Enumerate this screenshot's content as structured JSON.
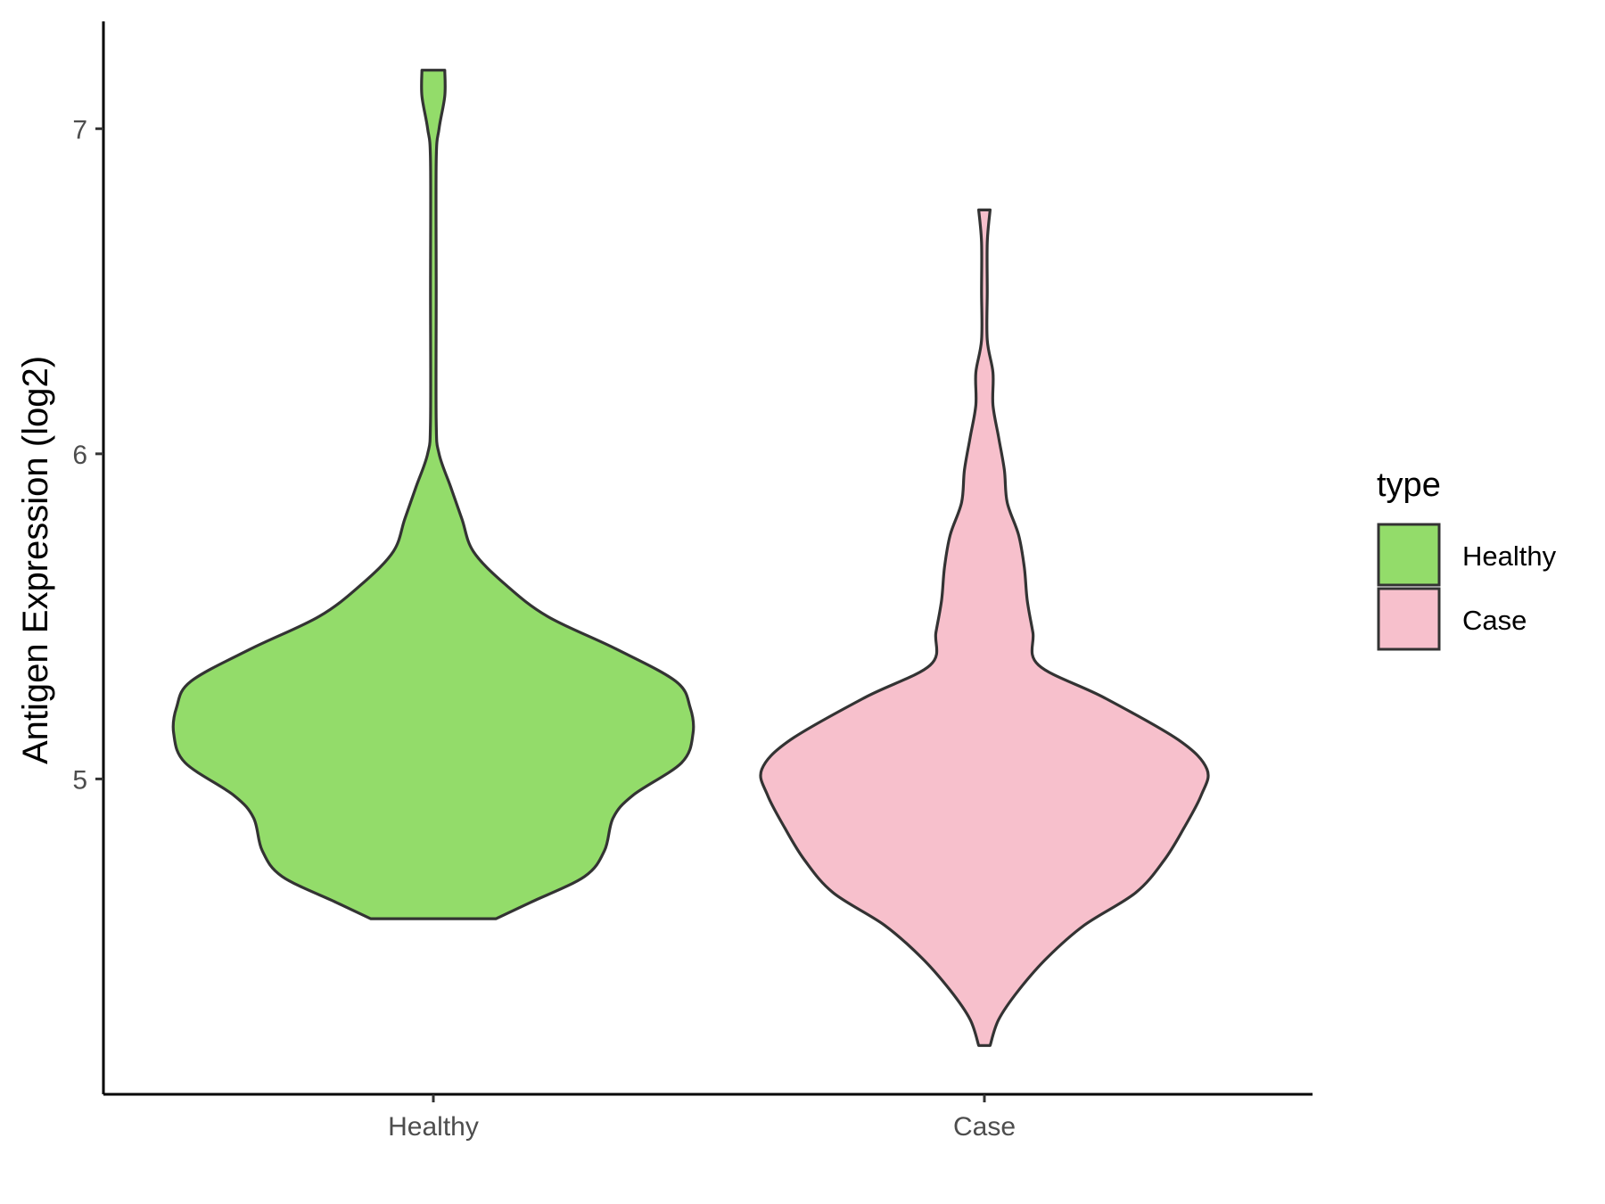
{
  "chart_data": {
    "type": "violin",
    "title": "",
    "xlabel": "",
    "ylabel": "Antigen Expression (log2)",
    "ylim": [
      4.03,
      7.33
    ],
    "yticks": [
      5,
      6,
      7
    ],
    "categories": [
      "Healthy",
      "Case"
    ],
    "legend": {
      "title": "type",
      "placement": "right",
      "entries": [
        "Healthy",
        "Case"
      ]
    },
    "grid": false,
    "series": [
      {
        "name": "Healthy",
        "color": "#93DC6A",
        "min": 4.57,
        "max": 7.18,
        "density_profile": [
          [
            4.57,
            0.22
          ],
          [
            4.62,
            0.34
          ],
          [
            4.7,
            0.53
          ],
          [
            4.78,
            0.6
          ],
          [
            4.88,
            0.63
          ],
          [
            4.95,
            0.7
          ],
          [
            5.05,
            0.87
          ],
          [
            5.14,
            0.91
          ],
          [
            5.22,
            0.9
          ],
          [
            5.3,
            0.85
          ],
          [
            5.4,
            0.64
          ],
          [
            5.5,
            0.4
          ],
          [
            5.6,
            0.25
          ],
          [
            5.7,
            0.14
          ],
          [
            5.8,
            0.1
          ],
          [
            5.9,
            0.06
          ],
          [
            6.0,
            0.02
          ],
          [
            6.1,
            0.01
          ],
          [
            6.5,
            0.01
          ],
          [
            6.9,
            0.01
          ],
          [
            7.0,
            0.02
          ],
          [
            7.1,
            0.04
          ],
          [
            7.18,
            0.04
          ]
        ]
      },
      {
        "name": "Case",
        "color": "#F7C0CC",
        "min": 4.18,
        "max": 6.75,
        "density_profile": [
          [
            4.18,
            0.02
          ],
          [
            4.26,
            0.05
          ],
          [
            4.35,
            0.12
          ],
          [
            4.45,
            0.22
          ],
          [
            4.55,
            0.35
          ],
          [
            4.65,
            0.53
          ],
          [
            4.75,
            0.63
          ],
          [
            4.85,
            0.7
          ],
          [
            4.95,
            0.76
          ],
          [
            5.03,
            0.78
          ],
          [
            5.12,
            0.68
          ],
          [
            5.25,
            0.42
          ],
          [
            5.35,
            0.19
          ],
          [
            5.45,
            0.17
          ],
          [
            5.55,
            0.15
          ],
          [
            5.65,
            0.14
          ],
          [
            5.75,
            0.12
          ],
          [
            5.85,
            0.08
          ],
          [
            5.95,
            0.07
          ],
          [
            6.05,
            0.05
          ],
          [
            6.15,
            0.03
          ],
          [
            6.25,
            0.03
          ],
          [
            6.35,
            0.01
          ],
          [
            6.5,
            0.01
          ],
          [
            6.65,
            0.01
          ],
          [
            6.75,
            0.02
          ]
        ]
      }
    ]
  }
}
